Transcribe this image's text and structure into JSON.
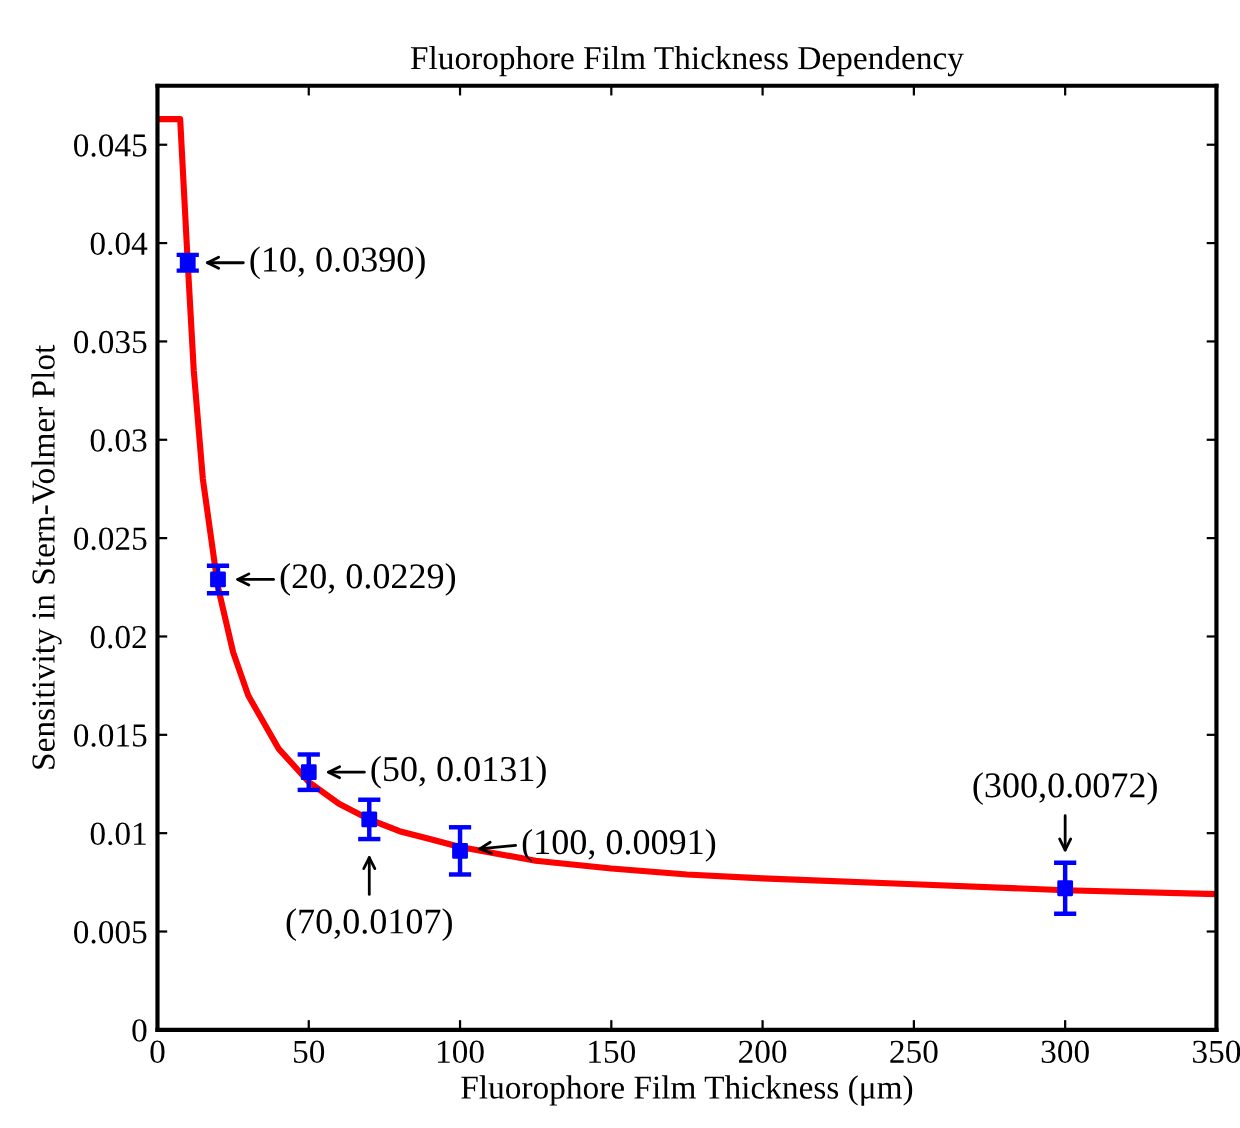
{
  "chart_data": {
    "type": "line",
    "title": "Fluorophore Film Thickness Dependency",
    "xlabel": "Fluorophore Film Thickness (μm)",
    "ylabel": "Sensitivity in Stern-Volmer Plot",
    "xlim": [
      0,
      350
    ],
    "ylim": [
      0,
      0.048
    ],
    "xticks": [
      0,
      50,
      100,
      150,
      200,
      250,
      300,
      350
    ],
    "yticks": [
      0,
      0.005,
      0.01,
      0.015,
      0.02,
      0.025,
      0.03,
      0.035,
      0.04,
      0.045
    ],
    "grid": false,
    "series": [
      {
        "color": "#ff0000",
        "marker": "none",
        "line_style": "solid",
        "x": [
          0,
          7.5,
          10,
          12,
          15,
          20,
          25,
          30,
          40,
          50,
          60,
          70,
          80,
          90,
          100,
          125,
          150,
          175,
          200,
          250,
          300,
          350
        ],
        "values": [
          0.0463,
          0.0463,
          0.039,
          0.0335,
          0.028,
          0.0225,
          0.0192,
          0.017,
          0.0143,
          0.0126,
          0.0115,
          0.0107,
          0.0101,
          0.0097,
          0.0093,
          0.0086,
          0.0082,
          0.0079,
          0.0077,
          0.0074,
          0.0071,
          0.0069
        ]
      },
      {
        "type": "scatter",
        "color": "#0000ff",
        "marker": "square",
        "x": [
          10,
          20,
          50,
          70,
          100,
          300
        ],
        "values": [
          0.039,
          0.0229,
          0.0131,
          0.0107,
          0.0091,
          0.0072
        ],
        "errors": [
          0.0004,
          0.0007,
          0.0009,
          0.001,
          0.0012,
          0.0013
        ]
      }
    ],
    "annotations": [
      {
        "text": "(10, 0.0390)",
        "x": 10,
        "y": 0.039
      },
      {
        "text": "(20, 0.0229)",
        "x": 20,
        "y": 0.0229
      },
      {
        "text": "(50, 0.0131)",
        "x": 50,
        "y": 0.0131
      },
      {
        "text": "(70,0.0107)",
        "x": 70,
        "y": 0.0107
      },
      {
        "text": "(100, 0.0091)",
        "x": 100,
        "y": 0.0091
      },
      {
        "text": "(300,0.0072)",
        "x": 300,
        "y": 0.0072
      }
    ]
  }
}
